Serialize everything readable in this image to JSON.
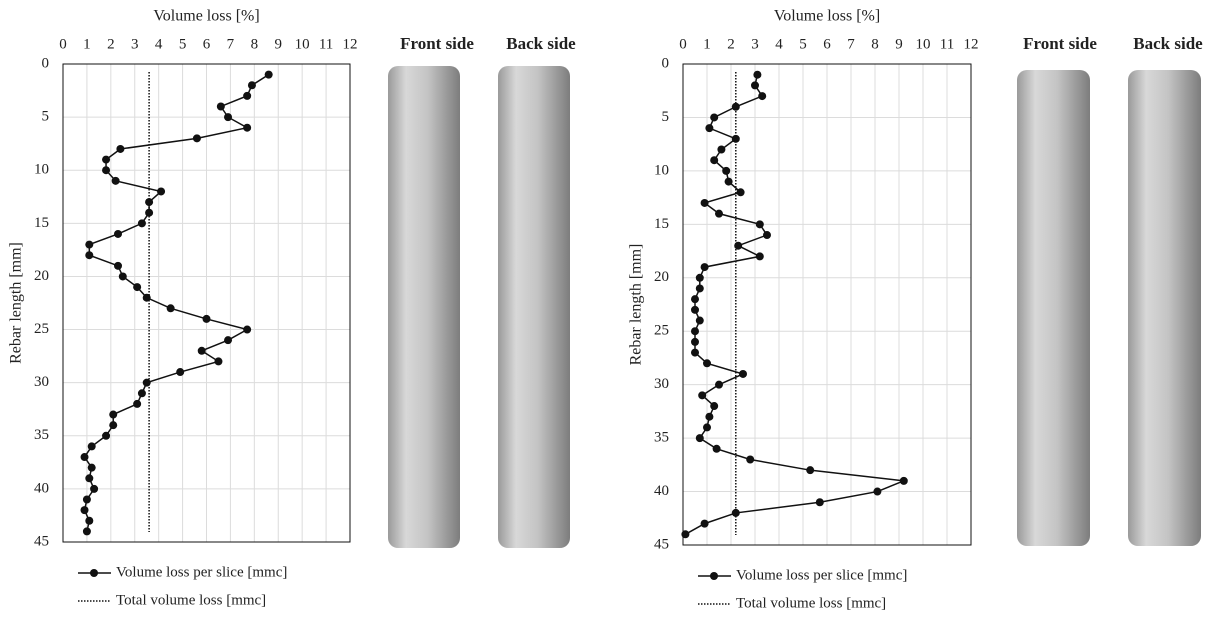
{
  "chart_data": [
    {
      "type": "line",
      "title": "Volume loss [%]",
      "y_label": "Rebar length [mm]",
      "xlim": [
        0,
        12
      ],
      "xticks": [
        0,
        1,
        2,
        3,
        4,
        5,
        6,
        7,
        8,
        9,
        10,
        11,
        12
      ],
      "ylim": [
        0,
        45
      ],
      "yticks": [
        0,
        5,
        10,
        15,
        20,
        25,
        30,
        35,
        40,
        45
      ],
      "y_inverted": true,
      "grid": true,
      "series": [
        {
          "name": "Volume loss per slice [mmc]",
          "color": "#111",
          "x": [
            8.6,
            7.9,
            7.7,
            6.6,
            6.9,
            7.7,
            5.6,
            2.4,
            1.8,
            1.8,
            2.2,
            4.1,
            3.6,
            3.6,
            3.3,
            2.3,
            1.1,
            1.1,
            2.3,
            2.5,
            3.1,
            3.5,
            4.5,
            6.0,
            7.7,
            6.9,
            5.8,
            6.5,
            4.9,
            3.5,
            3.3,
            3.1,
            2.1,
            2.1,
            1.8,
            1.2,
            0.9,
            1.2,
            1.1,
            1.3,
            1.0,
            0.9,
            1.1,
            1.0
          ],
          "y": [
            1,
            2,
            3,
            4,
            5,
            6,
            7,
            8,
            9,
            10,
            11,
            12,
            13,
            14,
            15,
            16,
            17,
            18,
            19,
            20,
            21,
            22,
            23,
            24,
            25,
            26,
            27,
            28,
            29,
            30,
            31,
            32,
            33,
            34,
            35,
            36,
            37,
            38,
            39,
            40,
            41,
            42,
            43,
            44
          ]
        },
        {
          "name": "Total volume loss [mmc]",
          "color": "#111",
          "style": "dotted",
          "value": 3.6
        }
      ]
    },
    {
      "type": "line",
      "title": "Volume loss [%]",
      "y_label": "Rebar length [mm]",
      "xlim": [
        0,
        12
      ],
      "xticks": [
        0,
        1,
        2,
        3,
        4,
        5,
        6,
        7,
        8,
        9,
        10,
        11,
        12
      ],
      "ylim": [
        0,
        45
      ],
      "yticks": [
        0,
        5,
        10,
        15,
        20,
        25,
        30,
        35,
        40,
        45
      ],
      "y_inverted": true,
      "grid": true,
      "series": [
        {
          "name": "Volume loss per slice [mmc]",
          "color": "#111",
          "x": [
            3.1,
            3.0,
            3.3,
            2.2,
            1.3,
            1.1,
            2.2,
            1.6,
            1.3,
            1.8,
            1.9,
            2.4,
            0.9,
            1.5,
            3.2,
            3.5,
            2.3,
            3.2,
            0.9,
            0.7,
            0.7,
            0.5,
            0.5,
            0.7,
            0.5,
            0.5,
            0.5,
            1.0,
            2.5,
            1.5,
            0.8,
            1.3,
            1.1,
            1.0,
            0.7,
            1.4,
            2.8,
            5.3,
            9.2,
            8.1,
            5.7,
            2.2,
            0.9,
            0.1
          ],
          "y": [
            1,
            2,
            3,
            4,
            5,
            6,
            7,
            8,
            9,
            10,
            11,
            12,
            13,
            14,
            15,
            16,
            17,
            18,
            19,
            20,
            21,
            22,
            23,
            24,
            25,
            26,
            27,
            28,
            29,
            30,
            31,
            32,
            33,
            34,
            35,
            36,
            37,
            38,
            39,
            40,
            41,
            42,
            43,
            44
          ]
        },
        {
          "name": "Total volume loss [mmc]",
          "color": "#111",
          "style": "dotted",
          "value": 2.2
        }
      ]
    }
  ],
  "images": [
    {
      "front_label": "Front side",
      "back_label": "Back side"
    },
    {
      "front_label": "Front side",
      "back_label": "Back side"
    }
  ]
}
